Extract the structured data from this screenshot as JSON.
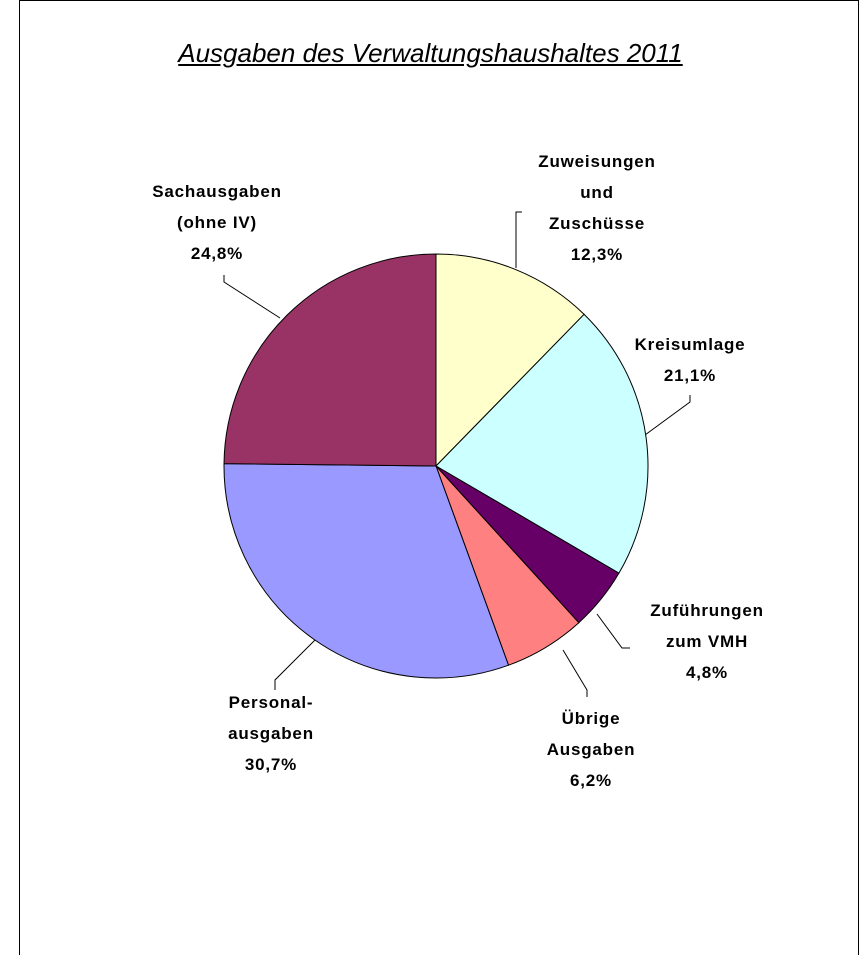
{
  "chart_data": {
    "type": "pie",
    "title": "Ausgaben des Verwaltungshaushaltes 2011",
    "categories": [
      "Zuweisungen\nund\nZuschüsse",
      "Kreisumlage",
      "Zuführungen\nzum VMH",
      "Übrige\nAusgaben",
      "Personal-\nausgaben",
      "Sachausgaben\n(ohne IV)"
    ],
    "values": [
      12.3,
      21.1,
      4.8,
      6.2,
      30.7,
      24.8
    ],
    "value_labels": [
      "12,3%",
      "21,1%",
      "4,8%",
      "6,2%",
      "30,7%",
      "24,8%"
    ],
    "colors": [
      "#ffffcc",
      "#ccffff",
      "#660066",
      "#ff8080",
      "#9999ff",
      "#993366"
    ]
  }
}
